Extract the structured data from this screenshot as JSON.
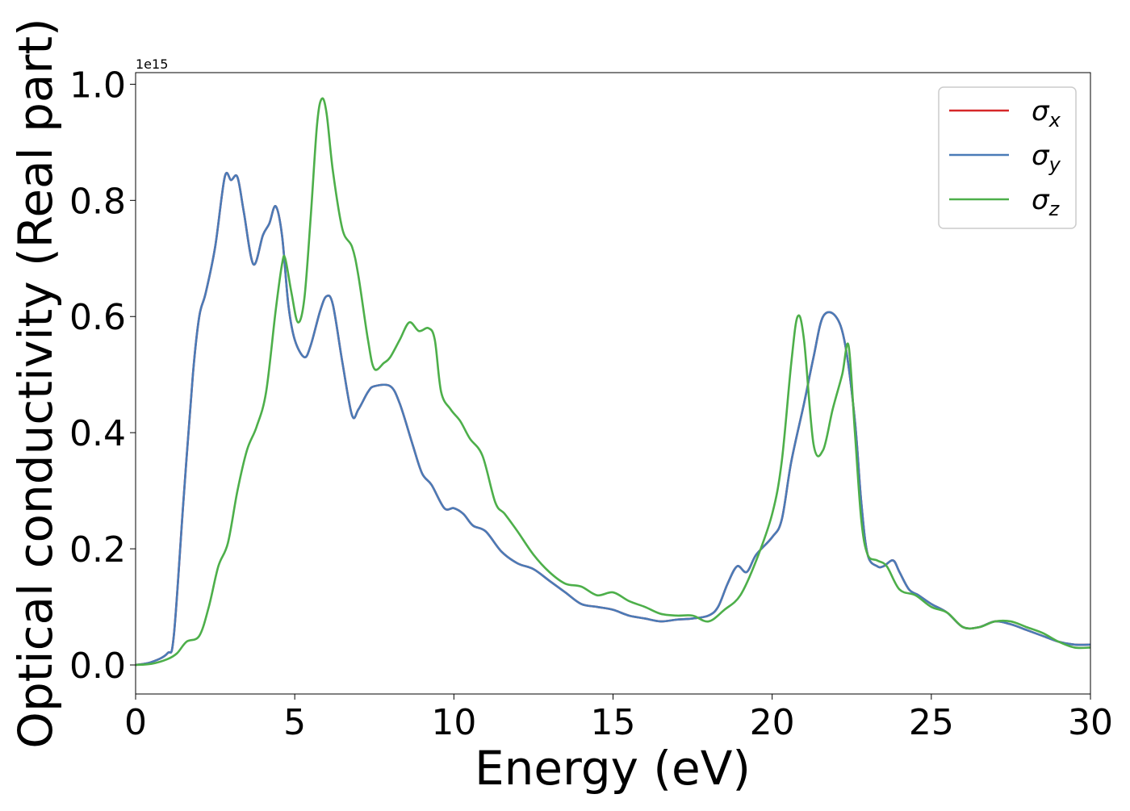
{
  "chart_data": {
    "type": "line",
    "title": "",
    "xlabel": "Energy (eV)",
    "ylabel": "Optical conductivity (Real part)",
    "y_offset_text": "1e15",
    "xlim": [
      0,
      30
    ],
    "ylim": [
      -0.05,
      1.02
    ],
    "xticks": [
      0,
      5,
      10,
      15,
      20,
      25,
      30
    ],
    "xtick_labels": [
      "0",
      "5",
      "10",
      "15",
      "20",
      "25",
      "30"
    ],
    "yticks": [
      0.0,
      0.2,
      0.4,
      0.6,
      0.8,
      1.0
    ],
    "ytick_labels": [
      "0.0",
      "0.2",
      "0.4",
      "0.6",
      "0.8",
      "1.0"
    ],
    "grid": false,
    "legend_position": "top-right",
    "series": [
      {
        "name": "σx",
        "base": "σ",
        "sub": "x",
        "color": "#d62728",
        "x": [
          0,
          0.5,
          1.0,
          1.2,
          1.5,
          1.8,
          2.0,
          2.2,
          2.5,
          2.8,
          3.0,
          3.2,
          3.4,
          3.7,
          4.0,
          4.2,
          4.4,
          4.6,
          4.8,
          5.0,
          5.3,
          5.5,
          5.8,
          6.0,
          6.2,
          6.5,
          6.8,
          7.0,
          7.3,
          7.5,
          8.0,
          8.3,
          8.7,
          9.0,
          9.3,
          9.7,
          10.0,
          10.3,
          10.6,
          11.0,
          11.5,
          12.0,
          12.5,
          13.0,
          13.5,
          14.0,
          14.5,
          15.0,
          15.5,
          16.0,
          16.5,
          17.0,
          17.5,
          18.0,
          18.3,
          18.6,
          18.9,
          19.2,
          19.5,
          20.0,
          20.3,
          20.6,
          21.0,
          21.3,
          21.6,
          22.0,
          22.3,
          22.6,
          22.8,
          23.0,
          23.3,
          23.5,
          23.8,
          24.0,
          24.3,
          24.6,
          25.0,
          25.5,
          26.0,
          26.5,
          27.0,
          27.5,
          28.0,
          28.5,
          29.0,
          29.5,
          30.0
        ],
        "y": [
          0.0,
          0.005,
          0.02,
          0.05,
          0.28,
          0.5,
          0.6,
          0.64,
          0.72,
          0.84,
          0.835,
          0.84,
          0.78,
          0.69,
          0.74,
          0.76,
          0.79,
          0.74,
          0.62,
          0.56,
          0.53,
          0.55,
          0.61,
          0.635,
          0.62,
          0.52,
          0.43,
          0.44,
          0.47,
          0.48,
          0.48,
          0.45,
          0.38,
          0.33,
          0.31,
          0.27,
          0.27,
          0.26,
          0.24,
          0.23,
          0.195,
          0.175,
          0.165,
          0.145,
          0.125,
          0.105,
          0.1,
          0.095,
          0.085,
          0.08,
          0.075,
          0.078,
          0.08,
          0.085,
          0.1,
          0.14,
          0.17,
          0.16,
          0.19,
          0.22,
          0.25,
          0.35,
          0.45,
          0.53,
          0.6,
          0.6,
          0.55,
          0.42,
          0.28,
          0.19,
          0.17,
          0.17,
          0.18,
          0.16,
          0.13,
          0.12,
          0.105,
          0.09,
          0.065,
          0.065,
          0.075,
          0.07,
          0.06,
          0.05,
          0.04,
          0.035,
          0.035
        ]
      },
      {
        "name": "σy",
        "base": "σ",
        "sub": "y",
        "color": "#4a7bb7",
        "x": [
          0,
          0.5,
          1.0,
          1.2,
          1.5,
          1.8,
          2.0,
          2.2,
          2.5,
          2.8,
          3.0,
          3.2,
          3.4,
          3.7,
          4.0,
          4.2,
          4.4,
          4.6,
          4.8,
          5.0,
          5.3,
          5.5,
          5.8,
          6.0,
          6.2,
          6.5,
          6.8,
          7.0,
          7.3,
          7.5,
          8.0,
          8.3,
          8.7,
          9.0,
          9.3,
          9.7,
          10.0,
          10.3,
          10.6,
          11.0,
          11.5,
          12.0,
          12.5,
          13.0,
          13.5,
          14.0,
          14.5,
          15.0,
          15.5,
          16.0,
          16.5,
          17.0,
          17.5,
          18.0,
          18.3,
          18.6,
          18.9,
          19.2,
          19.5,
          20.0,
          20.3,
          20.6,
          21.0,
          21.3,
          21.6,
          22.0,
          22.3,
          22.6,
          22.8,
          23.0,
          23.3,
          23.5,
          23.8,
          24.0,
          24.3,
          24.6,
          25.0,
          25.5,
          26.0,
          26.5,
          27.0,
          27.5,
          28.0,
          28.5,
          29.0,
          29.5,
          30.0
        ],
        "y": [
          0.0,
          0.005,
          0.02,
          0.05,
          0.28,
          0.5,
          0.6,
          0.64,
          0.72,
          0.84,
          0.835,
          0.84,
          0.78,
          0.69,
          0.74,
          0.76,
          0.79,
          0.74,
          0.62,
          0.56,
          0.53,
          0.55,
          0.61,
          0.635,
          0.62,
          0.52,
          0.43,
          0.44,
          0.47,
          0.48,
          0.48,
          0.45,
          0.38,
          0.33,
          0.31,
          0.27,
          0.27,
          0.26,
          0.24,
          0.23,
          0.195,
          0.175,
          0.165,
          0.145,
          0.125,
          0.105,
          0.1,
          0.095,
          0.085,
          0.08,
          0.075,
          0.078,
          0.08,
          0.085,
          0.1,
          0.14,
          0.17,
          0.16,
          0.19,
          0.22,
          0.25,
          0.35,
          0.45,
          0.53,
          0.6,
          0.6,
          0.55,
          0.42,
          0.28,
          0.19,
          0.17,
          0.17,
          0.18,
          0.16,
          0.13,
          0.12,
          0.105,
          0.09,
          0.065,
          0.065,
          0.075,
          0.07,
          0.06,
          0.05,
          0.04,
          0.035,
          0.035
        ]
      },
      {
        "name": "σz",
        "base": "σ",
        "sub": "z",
        "color": "#4daf4a",
        "x": [
          0,
          0.5,
          1.0,
          1.3,
          1.6,
          2.0,
          2.3,
          2.6,
          2.9,
          3.2,
          3.5,
          3.8,
          4.1,
          4.4,
          4.6,
          4.7,
          4.9,
          5.1,
          5.3,
          5.5,
          5.7,
          5.85,
          6.0,
          6.2,
          6.5,
          6.8,
          7.0,
          7.3,
          7.5,
          7.8,
          8.0,
          8.3,
          8.6,
          8.9,
          9.2,
          9.4,
          9.6,
          9.9,
          10.2,
          10.5,
          10.9,
          11.3,
          11.6,
          12.0,
          12.5,
          13.0,
          13.5,
          14.0,
          14.5,
          15.0,
          15.5,
          16.0,
          16.5,
          17.0,
          17.5,
          18.0,
          18.5,
          19.0,
          19.5,
          20.0,
          20.3,
          20.6,
          20.8,
          21.0,
          21.3,
          21.6,
          21.9,
          22.2,
          22.4,
          22.6,
          22.8,
          23.0,
          23.3,
          23.6,
          24.0,
          24.5,
          25.0,
          25.5,
          26.0,
          26.5,
          27.0,
          27.5,
          28.0,
          28.5,
          29.0,
          29.5,
          30.0
        ],
        "y": [
          0.0,
          0.002,
          0.01,
          0.02,
          0.04,
          0.05,
          0.1,
          0.17,
          0.21,
          0.3,
          0.37,
          0.41,
          0.47,
          0.61,
          0.69,
          0.7,
          0.64,
          0.59,
          0.63,
          0.77,
          0.93,
          0.975,
          0.95,
          0.85,
          0.75,
          0.72,
          0.67,
          0.56,
          0.51,
          0.52,
          0.53,
          0.56,
          0.59,
          0.575,
          0.58,
          0.56,
          0.47,
          0.44,
          0.42,
          0.39,
          0.36,
          0.28,
          0.26,
          0.23,
          0.19,
          0.16,
          0.14,
          0.135,
          0.12,
          0.125,
          0.11,
          0.1,
          0.088,
          0.085,
          0.085,
          0.075,
          0.095,
          0.12,
          0.18,
          0.26,
          0.35,
          0.52,
          0.6,
          0.56,
          0.38,
          0.37,
          0.44,
          0.5,
          0.55,
          0.4,
          0.25,
          0.19,
          0.18,
          0.17,
          0.13,
          0.12,
          0.1,
          0.09,
          0.065,
          0.065,
          0.075,
          0.075,
          0.065,
          0.055,
          0.04,
          0.03,
          0.03
        ]
      }
    ]
  }
}
